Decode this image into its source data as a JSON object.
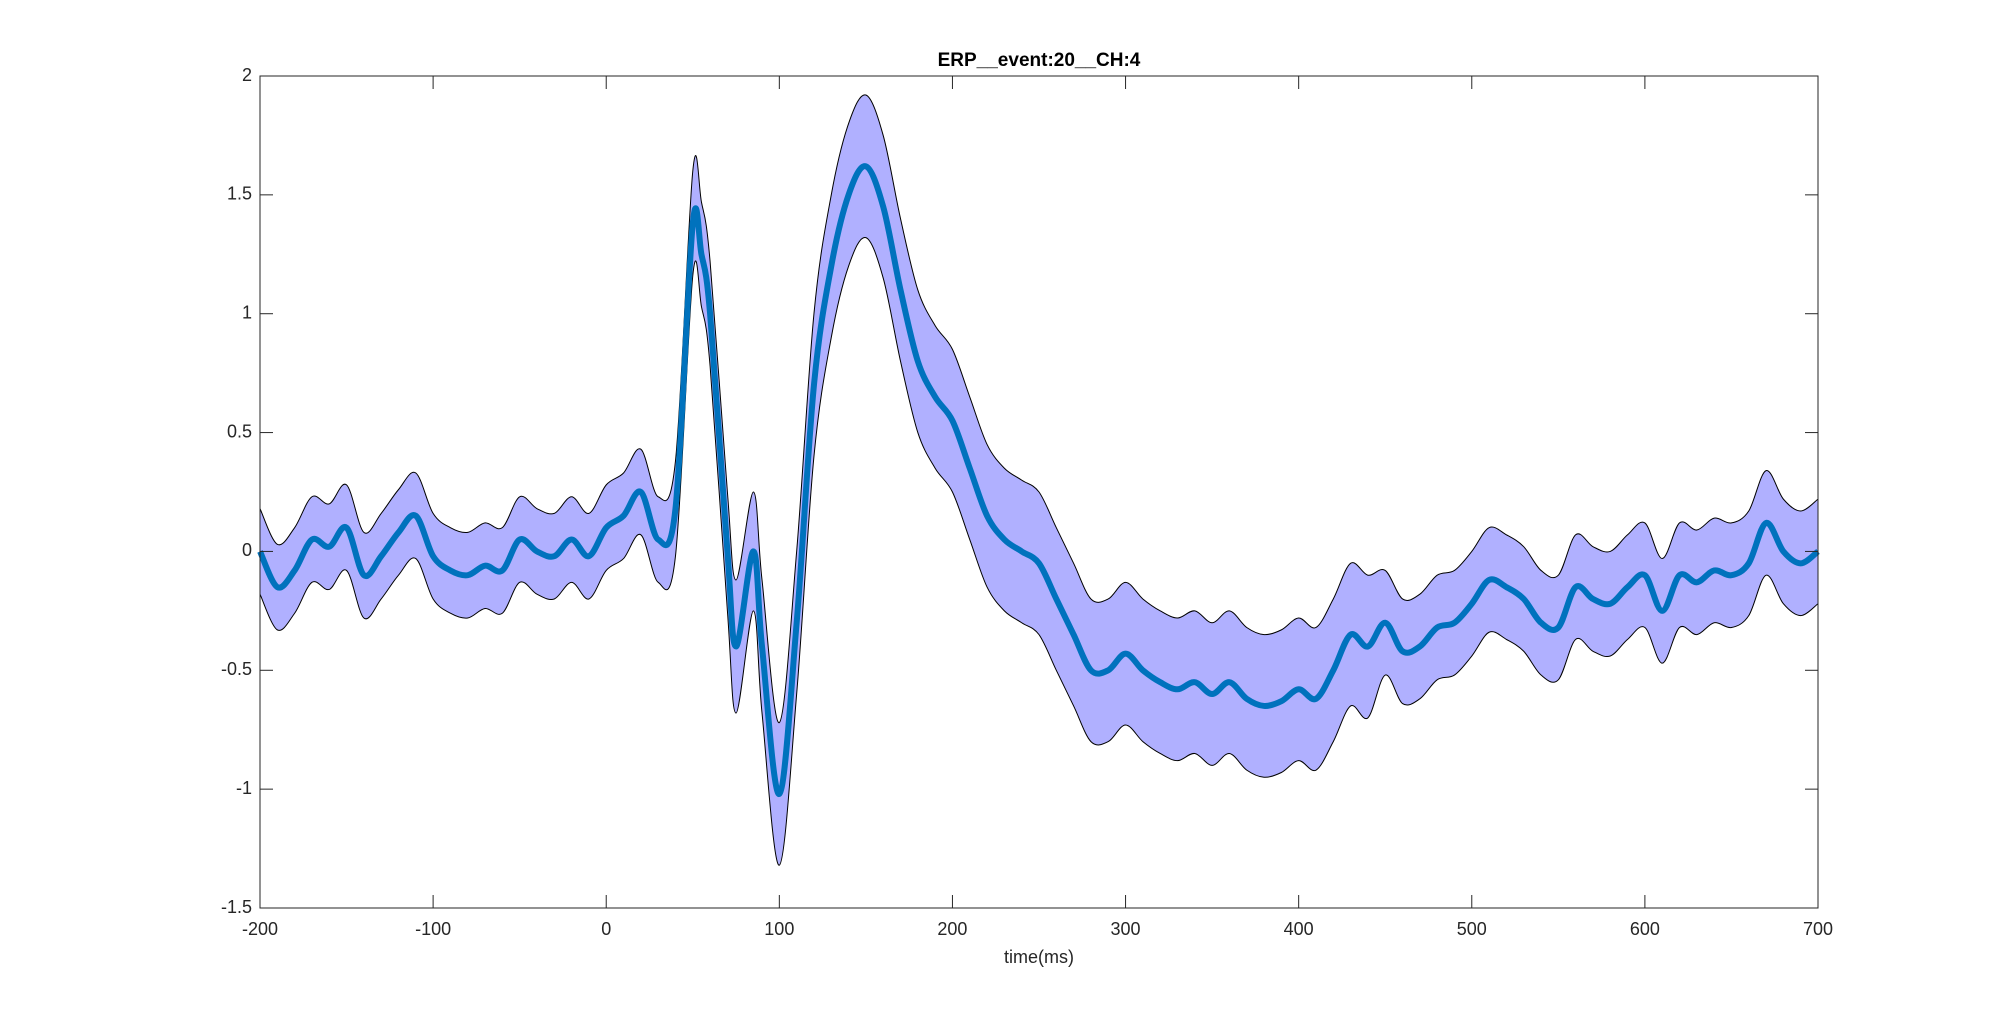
{
  "chart_data": {
    "type": "line",
    "title": "ERP__event:20__CH:4",
    "x_label": "time(ms)",
    "x": [
      -200,
      -190,
      -180,
      -170,
      -160,
      -150,
      -140,
      -130,
      -120,
      -110,
      -100,
      -90,
      -80,
      -70,
      -60,
      -50,
      -40,
      -30,
      -20,
      -10,
      0,
      10,
      20,
      30,
      40,
      50,
      55,
      60,
      70,
      75,
      85,
      90,
      100,
      110,
      120,
      130,
      140,
      150,
      160,
      170,
      180,
      190,
      200,
      210,
      220,
      230,
      240,
      250,
      260,
      270,
      280,
      290,
      300,
      310,
      320,
      330,
      340,
      350,
      360,
      370,
      380,
      390,
      400,
      410,
      420,
      430,
      440,
      450,
      460,
      470,
      480,
      490,
      500,
      510,
      520,
      530,
      540,
      550,
      560,
      570,
      580,
      590,
      600,
      610,
      620,
      630,
      640,
      650,
      660,
      670,
      680,
      690,
      700
    ],
    "series": [
      {
        "color": "#0072bd",
        "values": [
          0.0,
          -0.15,
          -0.08,
          0.05,
          0.02,
          0.1,
          -0.1,
          -0.02,
          0.08,
          0.15,
          -0.02,
          -0.08,
          -0.1,
          -0.06,
          -0.08,
          0.05,
          0.0,
          -0.02,
          0.05,
          -0.02,
          0.1,
          0.15,
          0.25,
          0.05,
          0.18,
          1.38,
          1.25,
          1.0,
          0.0,
          -0.4,
          0.0,
          -0.4,
          -1.02,
          -0.3,
          0.7,
          1.2,
          1.5,
          1.62,
          1.45,
          1.1,
          0.8,
          0.65,
          0.55,
          0.35,
          0.15,
          0.05,
          0.0,
          -0.05,
          -0.2,
          -0.35,
          -0.5,
          -0.5,
          -0.43,
          -0.5,
          -0.55,
          -0.58,
          -0.55,
          -0.6,
          -0.55,
          -0.62,
          -0.65,
          -0.63,
          -0.58,
          -0.62,
          -0.5,
          -0.35,
          -0.4,
          -0.3,
          -0.42,
          -0.4,
          -0.32,
          -0.3,
          -0.22,
          -0.12,
          -0.15,
          -0.2,
          -0.3,
          -0.32,
          -0.15,
          -0.2,
          -0.22,
          -0.15,
          -0.1,
          -0.25,
          -0.1,
          -0.13,
          -0.08,
          -0.1,
          -0.05,
          0.12,
          0.0,
          -0.05,
          0.0
        ]
      }
    ],
    "band": {
      "color": "#b0b0ff",
      "upper": [
        0.18,
        0.03,
        0.1,
        0.23,
        0.2,
        0.28,
        0.08,
        0.16,
        0.26,
        0.33,
        0.16,
        0.1,
        0.08,
        0.12,
        0.1,
        0.23,
        0.18,
        0.16,
        0.23,
        0.16,
        0.28,
        0.33,
        0.43,
        0.23,
        0.38,
        1.6,
        1.47,
        1.22,
        0.25,
        -0.12,
        0.25,
        -0.12,
        -0.72,
        0.0,
        1.0,
        1.5,
        1.8,
        1.92,
        1.75,
        1.4,
        1.1,
        0.95,
        0.85,
        0.65,
        0.45,
        0.35,
        0.3,
        0.25,
        0.1,
        -0.05,
        -0.2,
        -0.2,
        -0.13,
        -0.2,
        -0.25,
        -0.28,
        -0.25,
        -0.3,
        -0.25,
        -0.32,
        -0.35,
        -0.33,
        -0.28,
        -0.32,
        -0.2,
        -0.05,
        -0.1,
        -0.08,
        -0.2,
        -0.18,
        -0.1,
        -0.08,
        0.0,
        0.1,
        0.07,
        0.02,
        -0.08,
        -0.1,
        0.07,
        0.02,
        0.0,
        0.07,
        0.12,
        -0.03,
        0.12,
        0.09,
        0.14,
        0.12,
        0.17,
        0.34,
        0.22,
        0.17,
        0.22
      ],
      "lower": [
        -0.18,
        -0.33,
        -0.26,
        -0.13,
        -0.16,
        -0.08,
        -0.28,
        -0.2,
        -0.1,
        -0.03,
        -0.2,
        -0.26,
        -0.28,
        -0.24,
        -0.26,
        -0.13,
        -0.18,
        -0.2,
        -0.13,
        -0.2,
        -0.08,
        -0.03,
        0.07,
        -0.13,
        -0.02,
        1.16,
        1.03,
        0.78,
        -0.25,
        -0.68,
        -0.25,
        -0.68,
        -1.32,
        -0.6,
        0.4,
        0.9,
        1.2,
        1.32,
        1.15,
        0.8,
        0.5,
        0.35,
        0.25,
        0.05,
        -0.15,
        -0.25,
        -0.3,
        -0.35,
        -0.5,
        -0.65,
        -0.8,
        -0.8,
        -0.73,
        -0.8,
        -0.85,
        -0.88,
        -0.85,
        -0.9,
        -0.85,
        -0.92,
        -0.95,
        -0.93,
        -0.88,
        -0.92,
        -0.8,
        -0.65,
        -0.7,
        -0.52,
        -0.64,
        -0.62,
        -0.54,
        -0.52,
        -0.44,
        -0.34,
        -0.37,
        -0.42,
        -0.52,
        -0.54,
        -0.37,
        -0.42,
        -0.44,
        -0.37,
        -0.32,
        -0.47,
        -0.32,
        -0.35,
        -0.3,
        -0.32,
        -0.27,
        -0.1,
        -0.22,
        -0.27,
        -0.22
      ]
    },
    "xlim": [
      -200,
      700
    ],
    "ylim": [
      -1.5,
      2
    ],
    "xticks": [
      -200,
      -100,
      0,
      100,
      200,
      300,
      400,
      500,
      600,
      700
    ],
    "yticks": [
      -1.5,
      -1,
      -0.5,
      0,
      0.5,
      1,
      1.5,
      2
    ]
  }
}
